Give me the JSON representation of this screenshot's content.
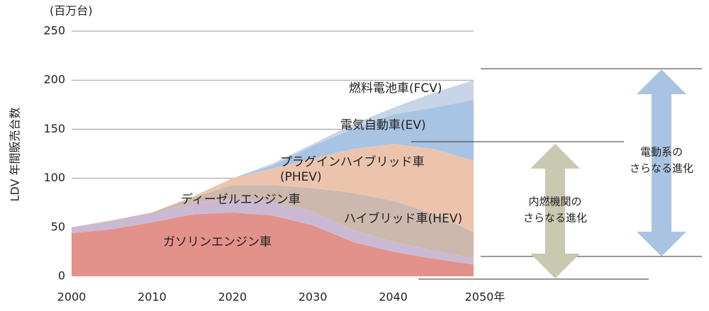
{
  "chart_data": {
    "type": "stacked_area",
    "unit_label": "(百万台)",
    "y_label": "LDV 年間販売台数",
    "x": [
      2000,
      2005,
      2010,
      2015,
      2020,
      2025,
      2030,
      2035,
      2040,
      2045,
      2050
    ],
    "xlim": [
      2000,
      2050
    ],
    "xticks": [
      2000,
      2010,
      2020,
      2030,
      2040,
      {
        "value": 2050,
        "label": "2050年"
      }
    ],
    "ylim": [
      0,
      250
    ],
    "yticks": [
      0,
      50,
      100,
      150,
      200,
      250
    ],
    "grid": true,
    "series": [
      {
        "name": "ガソリンエンジン車",
        "color": "#e3918b",
        "values": [
          44,
          48,
          55,
          63,
          65,
          62,
          52,
          35,
          25,
          18,
          12
        ]
      },
      {
        "name": "ディーゼルエンジン車",
        "color": "#cbb9d4",
        "values": [
          6,
          8,
          9,
          12,
          14,
          14,
          14,
          12,
          10,
          8,
          6
        ]
      },
      {
        "name": "ハイブリッド車(HEV)",
        "color": "#cdb8ae",
        "values": [
          0,
          1,
          1,
          5,
          14,
          17,
          24,
          38,
          42,
          38,
          27
        ]
      },
      {
        "name": "プラグインハイブリッド車\n(PHEV)",
        "color": "#ecc4ae",
        "values": [
          0,
          0,
          0,
          1,
          7,
          17,
          30,
          45,
          58,
          66,
          73
        ]
      },
      {
        "name": "電気自動車(EV)",
        "color": "#a9c3e2",
        "values": [
          0,
          0,
          0,
          0,
          0,
          3,
          13,
          20,
          30,
          42,
          62
        ]
      },
      {
        "name": "燃料電池車(FCV)",
        "color": "#c8d5e6",
        "values": [
          0,
          0,
          0,
          0,
          0,
          2,
          2,
          5,
          7,
          15,
          20
        ]
      }
    ],
    "annotations": [
      {
        "lines": [
          "内燃機関の",
          "さらなる進化"
        ]
      },
      {
        "lines": [
          "電動系の",
          "さらなる進化"
        ]
      }
    ]
  }
}
